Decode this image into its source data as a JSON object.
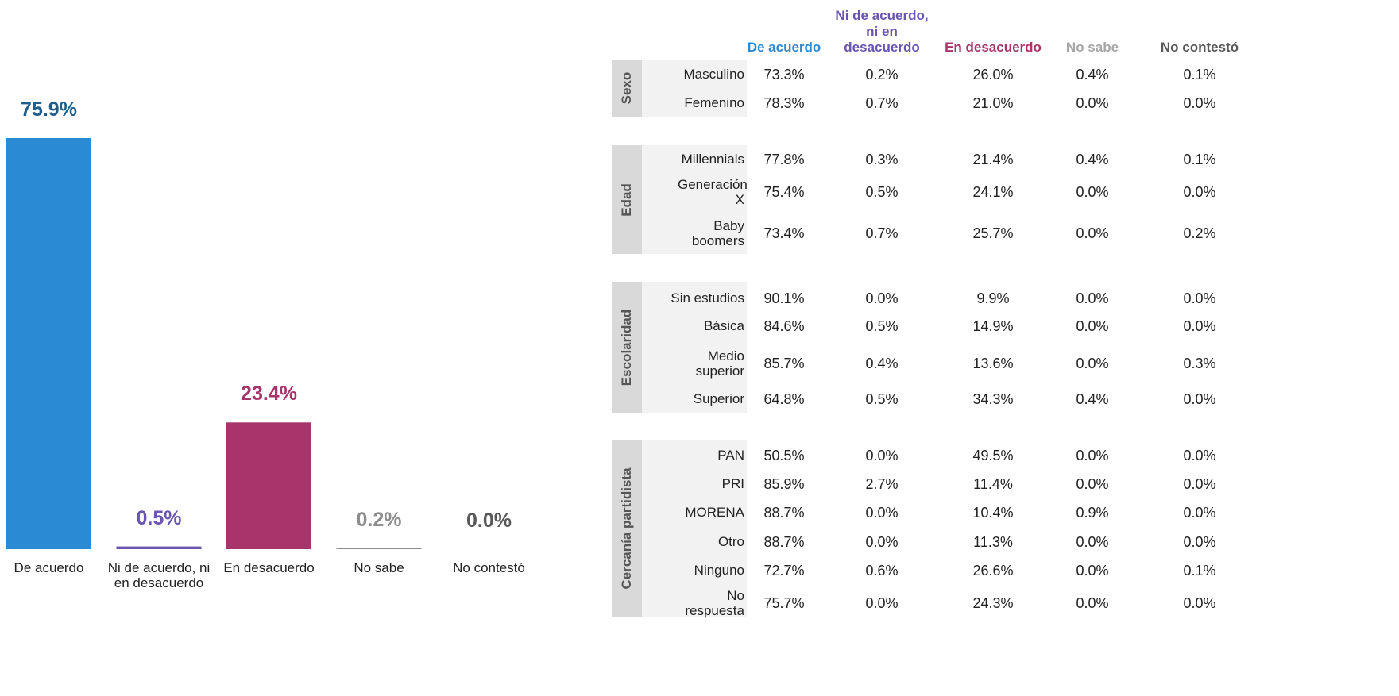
{
  "chart_data": {
    "type": "bar",
    "categories": [
      "De acuerdo",
      "Ni de acuerdo, ni en desacuerdo",
      "En desacuerdo",
      "No sabe",
      "No contestó"
    ],
    "values": [
      75.9,
      0.5,
      23.4,
      0.2,
      0.0
    ],
    "value_labels": [
      "75.9%",
      "0.5%",
      "23.4%",
      "0.2%",
      "0.0%"
    ],
    "colors": [
      "#2a8ad4",
      "#6a55b0",
      "#a8346b",
      "#8c8c8c",
      "#555555"
    ],
    "label_colors": [
      "#1f5e8c",
      "#6a55b0",
      "#a8346b",
      "#8c8c8c",
      "#595959"
    ]
  },
  "table": {
    "headers": [
      "De acuerdo",
      "Ni de acuerdo, ni en desacuerdo",
      "En desacuerdo",
      "No sabe",
      "No contestó"
    ],
    "header_colors": [
      "#2a8ad4",
      "#6a55b0",
      "#a8346b",
      "#a6a6a6",
      "#595959"
    ],
    "groups": [
      {
        "name": "Sexo",
        "rows": [
          {
            "label": "Masculino",
            "values": [
              "73.3%",
              "0.2%",
              "26.0%",
              "0.4%",
              "0.1%"
            ]
          },
          {
            "label": "Femenino",
            "values": [
              "78.3%",
              "0.7%",
              "21.0%",
              "0.0%",
              "0.0%"
            ]
          }
        ]
      },
      {
        "name": "Edad",
        "rows": [
          {
            "label": "Millennials",
            "values": [
              "77.8%",
              "0.3%",
              "21.4%",
              "0.4%",
              "0.1%"
            ]
          },
          {
            "label": "Generación X",
            "values": [
              "75.4%",
              "0.5%",
              "24.1%",
              "0.0%",
              "0.0%"
            ]
          },
          {
            "label": "Baby boomers",
            "values": [
              "73.4%",
              "0.7%",
              "25.7%",
              "0.0%",
              "0.2%"
            ]
          }
        ]
      },
      {
        "name": "Escolaridad",
        "rows": [
          {
            "label": "Sin estudios",
            "values": [
              "90.1%",
              "0.0%",
              "9.9%",
              "0.0%",
              "0.0%"
            ]
          },
          {
            "label": "Básica",
            "values": [
              "84.6%",
              "0.5%",
              "14.9%",
              "0.0%",
              "0.0%"
            ]
          },
          {
            "label": "Medio superior",
            "values": [
              "85.7%",
              "0.4%",
              "13.6%",
              "0.0%",
              "0.3%"
            ]
          },
          {
            "label": "Superior",
            "values": [
              "64.8%",
              "0.5%",
              "34.3%",
              "0.4%",
              "0.0%"
            ]
          }
        ]
      },
      {
        "name": "Cercanía partidista",
        "rows": [
          {
            "label": "PAN",
            "values": [
              "50.5%",
              "0.0%",
              "49.5%",
              "0.0%",
              "0.0%"
            ]
          },
          {
            "label": "PRI",
            "values": [
              "85.9%",
              "2.7%",
              "11.4%",
              "0.0%",
              "0.0%"
            ]
          },
          {
            "label": "MORENA",
            "values": [
              "88.7%",
              "0.0%",
              "10.4%",
              "0.9%",
              "0.0%"
            ]
          },
          {
            "label": "Otro",
            "values": [
              "88.7%",
              "0.0%",
              "11.3%",
              "0.0%",
              "0.0%"
            ]
          },
          {
            "label": "Ninguno",
            "values": [
              "72.7%",
              "0.6%",
              "26.6%",
              "0.0%",
              "0.1%"
            ]
          },
          {
            "label": "No respuesta",
            "values": [
              "75.7%",
              "0.0%",
              "24.3%",
              "0.0%",
              "0.0%"
            ]
          }
        ]
      }
    ]
  }
}
